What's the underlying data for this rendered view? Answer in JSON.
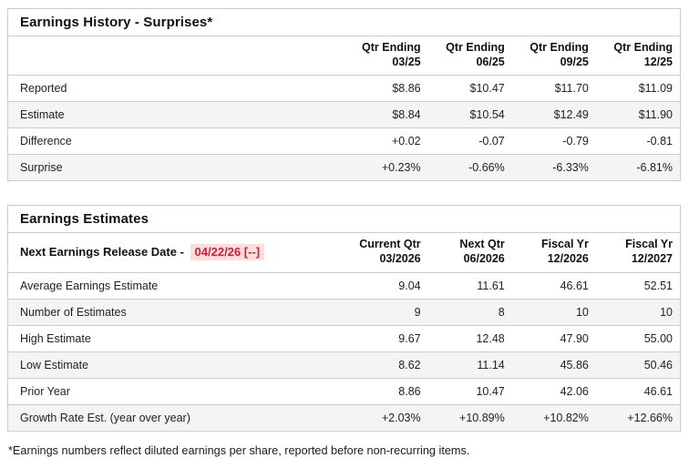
{
  "earnings_history": {
    "title": "Earnings History - Surprises*",
    "columns": [
      {
        "line1": "Qtr Ending",
        "line2": "03/25"
      },
      {
        "line1": "Qtr Ending",
        "line2": "06/25"
      },
      {
        "line1": "Qtr Ending",
        "line2": "09/25"
      },
      {
        "line1": "Qtr Ending",
        "line2": "12/25"
      }
    ],
    "rows": [
      {
        "label": "Reported",
        "values": [
          "$8.86",
          "$10.47",
          "$11.70",
          "$11.09"
        ]
      },
      {
        "label": "Estimate",
        "values": [
          "$8.84",
          "$10.54",
          "$12.49",
          "$11.90"
        ]
      },
      {
        "label": "Difference",
        "values": [
          "+0.02",
          "-0.07",
          "-0.79",
          "-0.81"
        ]
      },
      {
        "label": "Surprise",
        "values": [
          "+0.23%",
          "-0.66%",
          "-6.33%",
          "-6.81%"
        ]
      }
    ]
  },
  "earnings_estimates": {
    "title": "Earnings Estimates",
    "release_label": "Next Earnings Release Date -",
    "release_date": "04/22/26 [--]",
    "columns": [
      {
        "line1": "Current Qtr",
        "line2": "03/2026"
      },
      {
        "line1": "Next Qtr",
        "line2": "06/2026"
      },
      {
        "line1": "Fiscal Yr",
        "line2": "12/2026"
      },
      {
        "line1": "Fiscal Yr",
        "line2": "12/2027"
      }
    ],
    "rows": [
      {
        "label": "Average Earnings Estimate",
        "values": [
          "9.04",
          "11.61",
          "46.61",
          "52.51"
        ]
      },
      {
        "label": "Number of Estimates",
        "values": [
          "9",
          "8",
          "10",
          "10"
        ]
      },
      {
        "label": "High Estimate",
        "values": [
          "9.67",
          "12.48",
          "47.90",
          "55.00"
        ]
      },
      {
        "label": "Low Estimate",
        "values": [
          "8.62",
          "11.14",
          "45.86",
          "50.46"
        ]
      },
      {
        "label": "Prior Year",
        "values": [
          "8.86",
          "10.47",
          "42.06",
          "46.61"
        ]
      },
      {
        "label": "Growth Rate Est. (year over year)",
        "values": [
          "+2.03%",
          "+10.89%",
          "+10.82%",
          "+12.66%"
        ]
      }
    ]
  },
  "footnote": "*Earnings numbers reflect diluted earnings per share, reported before non-recurring items.",
  "colors": {
    "positive": "#2d8c6e",
    "negative": "#c3334d",
    "date_highlight_text": "#cb2233",
    "date_highlight_bg": "#fcdede",
    "row_alt_bg": "#f4f4f4",
    "border": "#cccccc"
  }
}
